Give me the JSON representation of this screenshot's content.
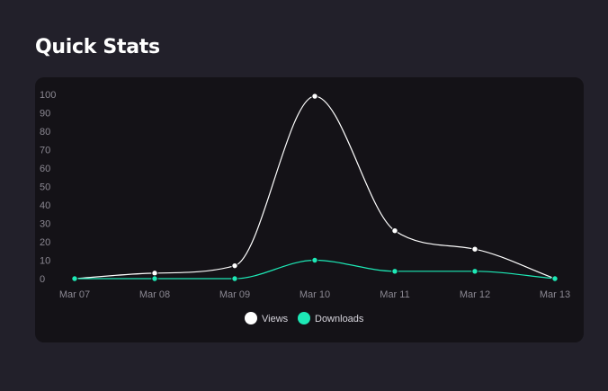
{
  "header": {
    "title": "Quick Stats"
  },
  "chart_data": {
    "type": "line",
    "title": "",
    "xlabel": "",
    "ylabel": "",
    "categories": [
      "Mar 07",
      "Mar 08",
      "Mar 09",
      "Mar 10",
      "Mar 11",
      "Mar 12",
      "Mar 13"
    ],
    "ylim": [
      0,
      100
    ],
    "yticks": [
      0,
      10,
      20,
      30,
      40,
      50,
      60,
      70,
      80,
      90,
      100
    ],
    "grid": false,
    "legend_position": "bottom-center",
    "series": [
      {
        "name": "Views",
        "values": [
          0,
          3,
          7,
          99,
          26,
          16,
          0
        ],
        "color": "#ffffff"
      },
      {
        "name": "Downloads",
        "values": [
          0,
          0,
          0,
          10,
          4,
          4,
          0
        ],
        "color": "#1de9b6"
      }
    ]
  }
}
